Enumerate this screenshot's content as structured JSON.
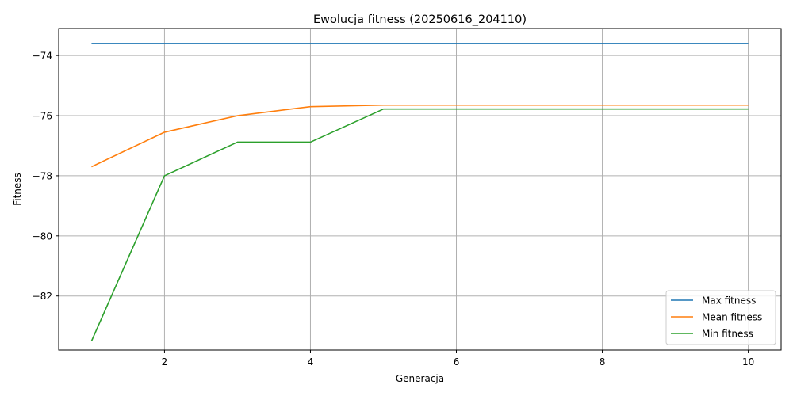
{
  "chart_data": {
    "type": "line",
    "title": "Ewolucja fitness (20250616_204110)",
    "xlabel": "Generacja",
    "ylabel": "Fitness",
    "x": [
      1,
      2,
      3,
      4,
      5,
      6,
      7,
      8,
      9,
      10
    ],
    "xlim": [
      0.55,
      10.45
    ],
    "ylim": [
      -83.8,
      -73.1
    ],
    "xticks": [
      2,
      4,
      6,
      8,
      10
    ],
    "yticks": [
      -82,
      -80,
      -78,
      -76,
      -74
    ],
    "grid": true,
    "legend_position": "lower right",
    "series": [
      {
        "name": "Max fitness",
        "color": "#1f77b4",
        "values": [
          -73.6,
          -73.6,
          -73.6,
          -73.6,
          -73.6,
          -73.6,
          -73.6,
          -73.6,
          -73.6,
          -73.6
        ]
      },
      {
        "name": "Mean fitness",
        "color": "#ff7f0e",
        "values": [
          -77.7,
          -76.55,
          -76.0,
          -75.7,
          -75.65,
          -75.65,
          -75.65,
          -75.65,
          -75.65,
          -75.65
        ]
      },
      {
        "name": "Min fitness",
        "color": "#2ca02c",
        "values": [
          -83.5,
          -78.0,
          -76.88,
          -76.88,
          -75.78,
          -75.78,
          -75.78,
          -75.78,
          -75.78,
          -75.78
        ]
      }
    ]
  }
}
